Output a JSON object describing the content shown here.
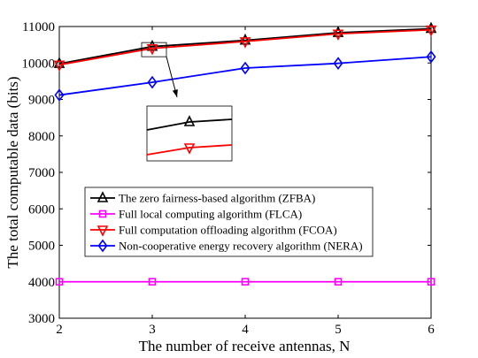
{
  "chart_data": {
    "type": "line",
    "title": "",
    "xlabel": "The number of receive antennas, N",
    "ylabel": "The total computable data (bits)",
    "x": [
      2,
      3,
      4,
      5,
      6
    ],
    "xlim": [
      2,
      6
    ],
    "ylim": [
      3000,
      11000
    ],
    "xticks": [
      "2",
      "3",
      "4",
      "5",
      "6"
    ],
    "yticks": [
      "3000",
      "4000",
      "5000",
      "6000",
      "7000",
      "8000",
      "9000",
      "10000",
      "11000"
    ],
    "grid": false,
    "legend_position": "center-left",
    "series": [
      {
        "name": "The zero fairness-based algorithm (ZFBA)",
        "values": [
          9980,
          10450,
          10620,
          10830,
          10940
        ],
        "color": "#000000",
        "marker": "triangle-up"
      },
      {
        "name": "Full local computing algorithm (FLCA)",
        "values": [
          4000,
          4000,
          4000,
          4000,
          4000
        ],
        "color": "#ff00ff",
        "marker": "square"
      },
      {
        "name": "Full computation offloading algorithm (FCOA)",
        "values": [
          9950,
          10400,
          10590,
          10800,
          10910
        ],
        "color": "#ff0000",
        "marker": "triangle-down"
      },
      {
        "name": "Non-cooperative energy recovery algorithm (NERA)",
        "values": [
          9120,
          9470,
          9860,
          9990,
          10170
        ],
        "color": "#0000ff",
        "marker": "diamond"
      }
    ],
    "annotations": [
      "zoom inset of ZFBA and FCOA near N = 3"
    ]
  }
}
